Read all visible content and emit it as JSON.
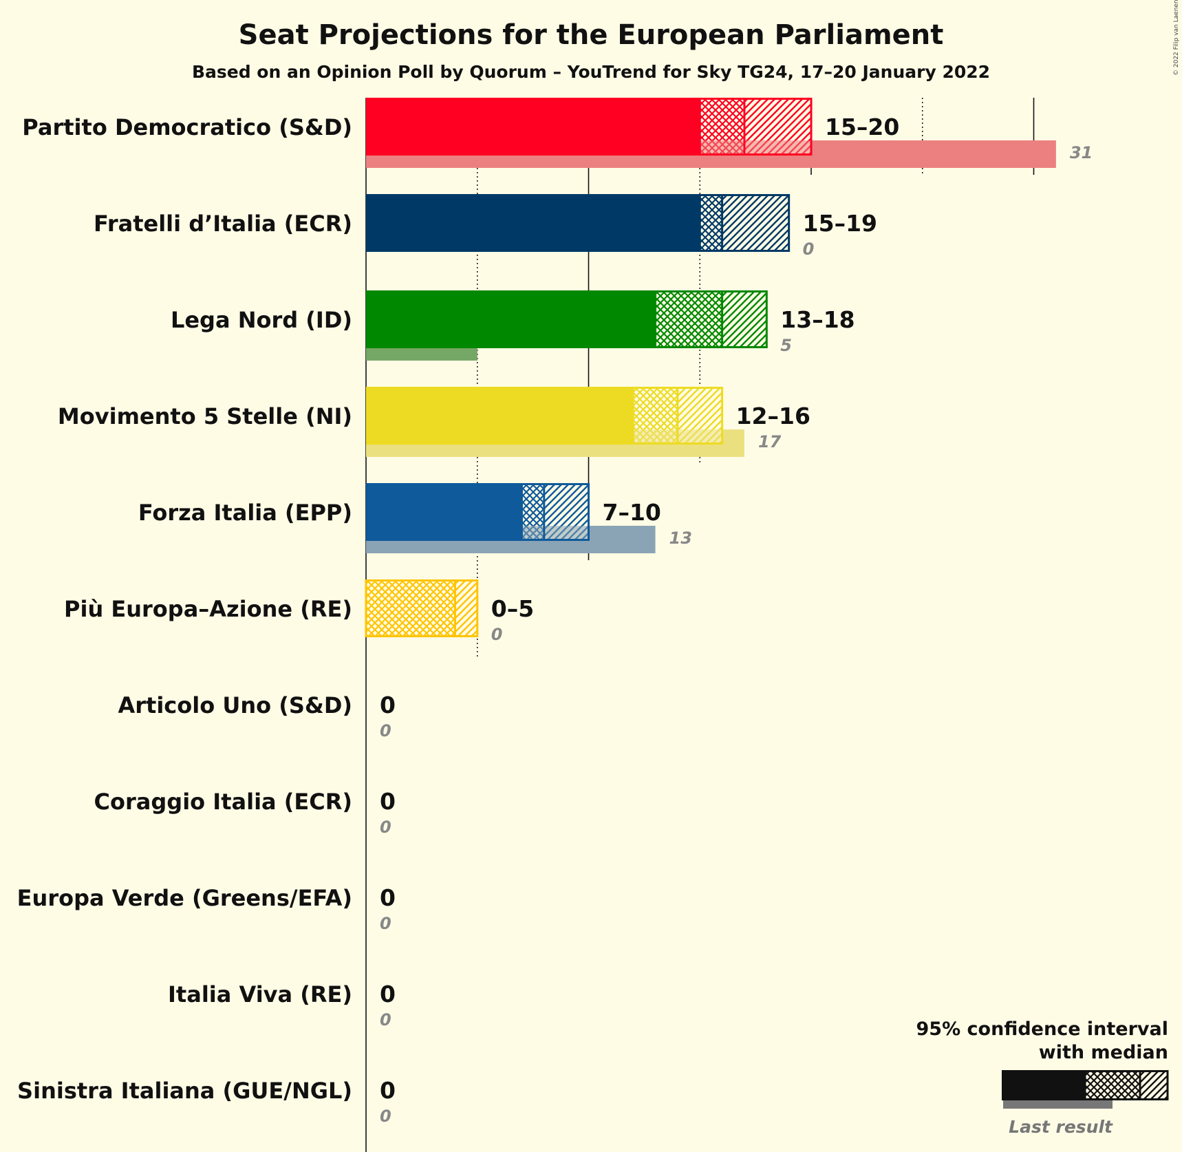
{
  "chart_data": {
    "type": "bar",
    "title": "Seat Projections for the European Parliament",
    "subtitle": "Based on an Opinion Poll by Quorum – YouTrend for Sky TG24, 17–20 January 2022",
    "copyright": "© 2022 Filip van Laenen",
    "categories": [
      "Partito Democratico (S&D)",
      "Fratelli d’Italia (ECR)",
      "Lega Nord (ID)",
      "Movimento 5 Stelle (NI)",
      "Forza Italia (EPP)",
      "Più Europa–Azione (RE)",
      "Articolo Uno (S&D)",
      "Coraggio Italia (ECR)",
      "Europa Verde (Greens/EFA)",
      "Italia Viva (RE)",
      "Sinistra Italiana (GUE/NGL)"
    ],
    "series": [
      {
        "name": "95% confidence interval with median",
        "ci_low": [
          15,
          15,
          13,
          12,
          7,
          0,
          0,
          0,
          0,
          0,
          0
        ],
        "median": [
          17,
          16,
          16,
          14,
          8,
          4,
          0,
          0,
          0,
          0,
          0
        ],
        "ci_high": [
          20,
          19,
          18,
          16,
          10,
          5,
          0,
          0,
          0,
          0,
          0
        ],
        "labels": [
          "15–20",
          "15–19",
          "13–18",
          "12–16",
          "7–10",
          "0–5",
          "0",
          "0",
          "0",
          "0",
          "0"
        ]
      },
      {
        "name": "Last result",
        "values": [
          31,
          0,
          5,
          17,
          13,
          0,
          0,
          0,
          0,
          0,
          0
        ],
        "labels": [
          "31",
          "0",
          "5",
          "17",
          "13",
          "0",
          "0",
          "0",
          "0",
          "0",
          "0"
        ]
      }
    ],
    "colors": [
      "#ff0022",
      "#003966",
      "#008800",
      "#eddb23",
      "#0f5a9b",
      "#ffc400",
      "#cc2233",
      "#2a4a7a",
      "#44aa44",
      "#d6418c",
      "#c0222a"
    ],
    "last_colors": [
      "#ec8080",
      "#888888",
      "#75a766",
      "#ebe07f",
      "#8aa4b5",
      "#ffd966",
      "#cc8888",
      "#8899aa",
      "#88bb88",
      "#dd88bb",
      "#cc7777"
    ],
    "xlim": [
      0,
      36
    ],
    "gridlines_solid": [
      0,
      10,
      20,
      30
    ],
    "gridlines_dotted": [
      5,
      15,
      25
    ],
    "legend": {
      "line1": "95% confidence interval",
      "line2": "with median",
      "last_result": "Last result",
      "placement": "bottom-right"
    }
  }
}
